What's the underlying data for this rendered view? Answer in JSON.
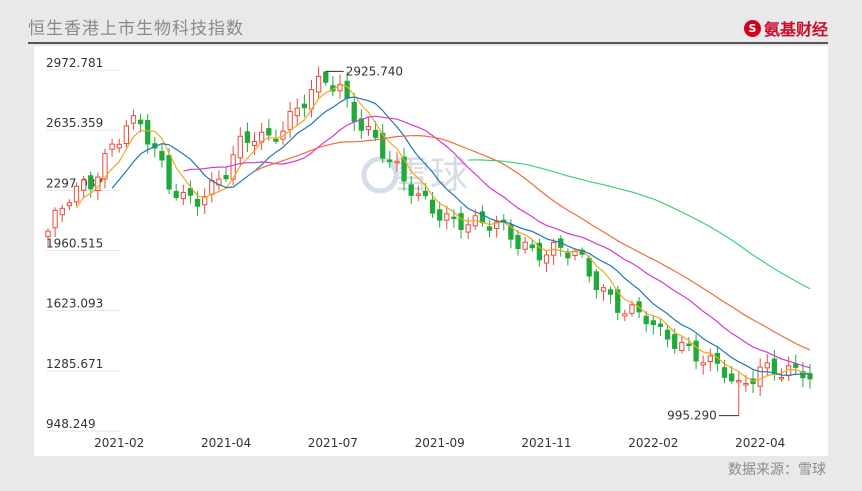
{
  "header": {
    "title": "恒生香港上市生物科技指数",
    "brand_logo": "S",
    "brand_name": "氨基财经"
  },
  "footer": {
    "source": "数据来源：雪球"
  },
  "watermark": "雪球",
  "chart_data": {
    "type": "candlestick",
    "title": "恒生香港上市生物科技指数",
    "ylim": [
      948.249,
      2972.781
    ],
    "y_ticks": [
      {
        "label": "2972.781",
        "value": 2972.781
      },
      {
        "label": "2635.359",
        "value": 2635.359
      },
      {
        "label": "2297.937",
        "value": 2297.937
      },
      {
        "label": "1960.515",
        "value": 1960.515
      },
      {
        "label": "1623.093",
        "value": 1623.093
      },
      {
        "label": "1285.671",
        "value": 1285.671
      },
      {
        "label": "948.249",
        "value": 948.249
      }
    ],
    "x_ticks": [
      {
        "label": "2021-02",
        "index": 10
      },
      {
        "label": "2021-04",
        "index": 25
      },
      {
        "label": "2021-07",
        "index": 40
      },
      {
        "label": "2021-09",
        "index": 55
      },
      {
        "label": "2021-11",
        "index": 70
      },
      {
        "label": "2022-02",
        "index": 85
      },
      {
        "label": "2022-04",
        "index": 100
      }
    ],
    "candle_count": 108,
    "annotations": [
      {
        "label": "2925.740",
        "value": 2925.74,
        "type": "max"
      },
      {
        "label": "995.290",
        "value": 995.29,
        "type": "min"
      }
    ],
    "moving_average_colors": [
      "#f5a623",
      "#1f77b4",
      "#d63ad6",
      "#ef6c3a",
      "#3fcf7a"
    ],
    "up_color": "#e74c3c",
    "down_color": "#1faa3a",
    "waypoints": [
      [
        0,
        2030
      ],
      [
        3,
        2200
      ],
      [
        6,
        2300
      ],
      [
        9,
        2530
      ],
      [
        11,
        2640
      ],
      [
        13,
        2620
      ],
      [
        15,
        2450
      ],
      [
        17,
        2280
      ],
      [
        19,
        2230
      ],
      [
        21,
        2240
      ],
      [
        23,
        2280
      ],
      [
        25,
        2350
      ],
      [
        27,
        2490
      ],
      [
        29,
        2560
      ],
      [
        31,
        2560
      ],
      [
        33,
        2640
      ],
      [
        35,
        2720
      ],
      [
        37,
        2800
      ],
      [
        39,
        2850
      ],
      [
        41,
        2820
      ],
      [
        42,
        2750
      ],
      [
        44,
        2650
      ],
      [
        46,
        2560
      ],
      [
        48,
        2420
      ],
      [
        50,
        2290
      ],
      [
        52,
        2200
      ],
      [
        54,
        2170
      ],
      [
        56,
        2120
      ],
      [
        58,
        2100
      ],
      [
        60,
        2060
      ],
      [
        62,
        2050
      ],
      [
        64,
        2030
      ],
      [
        66,
        1980
      ],
      [
        68,
        1940
      ],
      [
        70,
        1930
      ],
      [
        72,
        1920
      ],
      [
        74,
        1880
      ],
      [
        76,
        1780
      ],
      [
        78,
        1700
      ],
      [
        80,
        1640
      ],
      [
        82,
        1590
      ],
      [
        84,
        1540
      ],
      [
        85,
        1480
      ],
      [
        86,
        1420
      ],
      [
        88,
        1400
      ],
      [
        90,
        1370
      ],
      [
        92,
        1350
      ],
      [
        95,
        1250
      ],
      [
        96,
        1180
      ],
      [
        97,
        1120
      ],
      [
        98,
        1150
      ],
      [
        100,
        1240
      ],
      [
        102,
        1270
      ],
      [
        104,
        1270
      ],
      [
        106,
        1260
      ],
      [
        107,
        1210
      ]
    ]
  }
}
